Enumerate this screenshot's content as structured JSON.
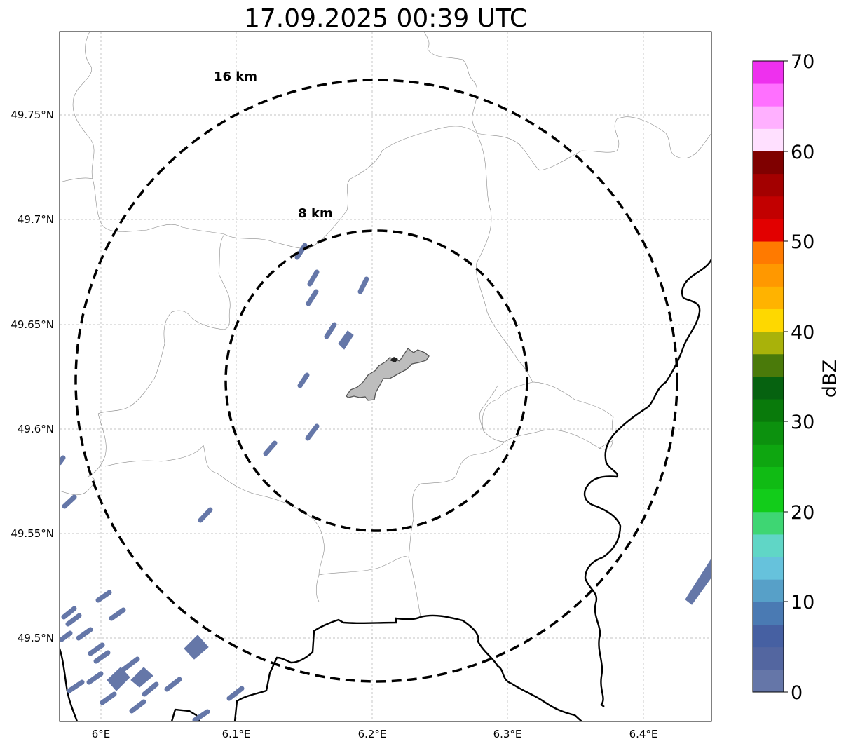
{
  "title": "17.09.2025 00:39 UTC",
  "map": {
    "lon_ticks": [
      "6°E",
      "6.1°E",
      "6.2°E",
      "6.3°E",
      "6.4°E"
    ],
    "lat_ticks": [
      "49.75°N",
      "49.7°N",
      "49.65°N",
      "49.6°N",
      "49.55°N",
      "49.5°N"
    ],
    "ring_outer_label": "16 km",
    "ring_inner_label": "8 km",
    "echo_color": "#6577a8",
    "city_fill": "#bdbdbd"
  },
  "colorbar": {
    "label": "dBZ",
    "ticks": [
      "0",
      "10",
      "20",
      "30",
      "40",
      "50",
      "60",
      "70"
    ],
    "colors": [
      "#6576a8",
      "#5366a0",
      "#4660a2",
      "#4a7ab3",
      "#57a0c8",
      "#66c2dc",
      "#60d6c6",
      "#3ed673",
      "#12cc1a",
      "#10bb14",
      "#0ea610",
      "#0c910e",
      "#097a0b",
      "#066210",
      "#4a7a0a",
      "#a9b20a",
      "#fed800",
      "#ffb300",
      "#ff9800",
      "#ff7a00",
      "#e20000",
      "#c20000",
      "#a30000",
      "#7f0000",
      "#ffe0ff",
      "#ffb0ff",
      "#ff70ff",
      "#ee30ee"
    ]
  }
}
